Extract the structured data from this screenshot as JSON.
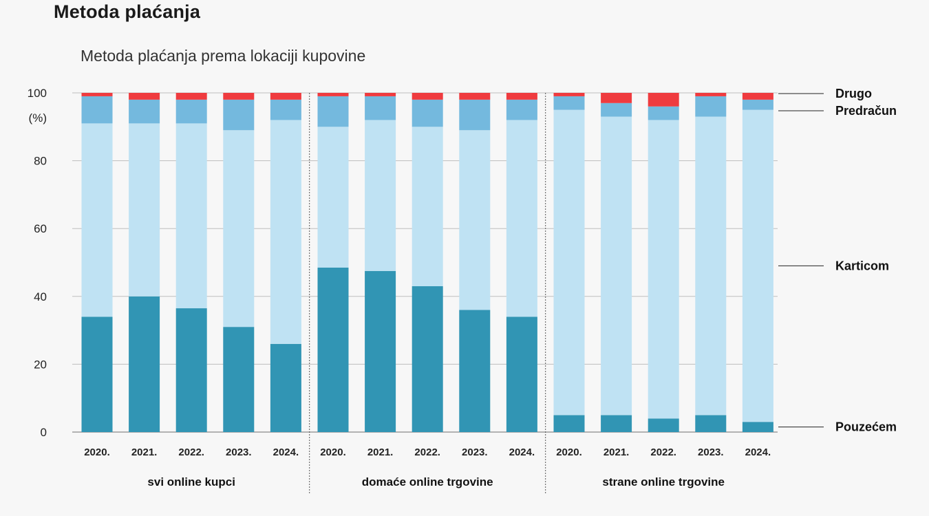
{
  "header": {
    "title": "Metoda plaćanja",
    "subtitle": "Metoda plaćanja prema lokaciji kupovine"
  },
  "chart_data": {
    "type": "bar",
    "stacked": true,
    "title": "Metoda plaćanja prema lokaciji kupovine",
    "ylabel": "(%)",
    "ylim": [
      0,
      100
    ],
    "yticks": [
      0,
      20,
      40,
      60,
      80,
      100
    ],
    "grid": true,
    "legend_placement": "right",
    "groups": [
      {
        "label": "svi online kupci",
        "categories": [
          "2020.",
          "2021.",
          "2022.",
          "2023.",
          "2024."
        ]
      },
      {
        "label": "domaće online trgovine",
        "categories": [
          "2020.",
          "2021.",
          "2022.",
          "2023.",
          "2024."
        ]
      },
      {
        "label": "strane online trgovine",
        "categories": [
          "2020.",
          "2021.",
          "2022.",
          "2023.",
          "2024."
        ]
      }
    ],
    "series": [
      {
        "name": "Pouzećem",
        "color": "#3195b4",
        "values": [
          34,
          40,
          36.5,
          31,
          26,
          48.5,
          47.5,
          43,
          36,
          34,
          5,
          5,
          4,
          5,
          3
        ]
      },
      {
        "name": "Karticom",
        "color": "#bfe2f3",
        "values": [
          57,
          51,
          54.5,
          58,
          66,
          41.5,
          44.5,
          47,
          53,
          58,
          90,
          88,
          88,
          88,
          92
        ]
      },
      {
        "name": "Predračun",
        "color": "#74b9de",
        "values": [
          8,
          7,
          7,
          9,
          6,
          9,
          7,
          8,
          9,
          6,
          4,
          4,
          4,
          6,
          3
        ]
      },
      {
        "name": "Drugo",
        "color": "#ef3b3f",
        "values": [
          1,
          2,
          2,
          2,
          2,
          1,
          1,
          2,
          2,
          2,
          1,
          3,
          4,
          1,
          2
        ]
      }
    ]
  }
}
